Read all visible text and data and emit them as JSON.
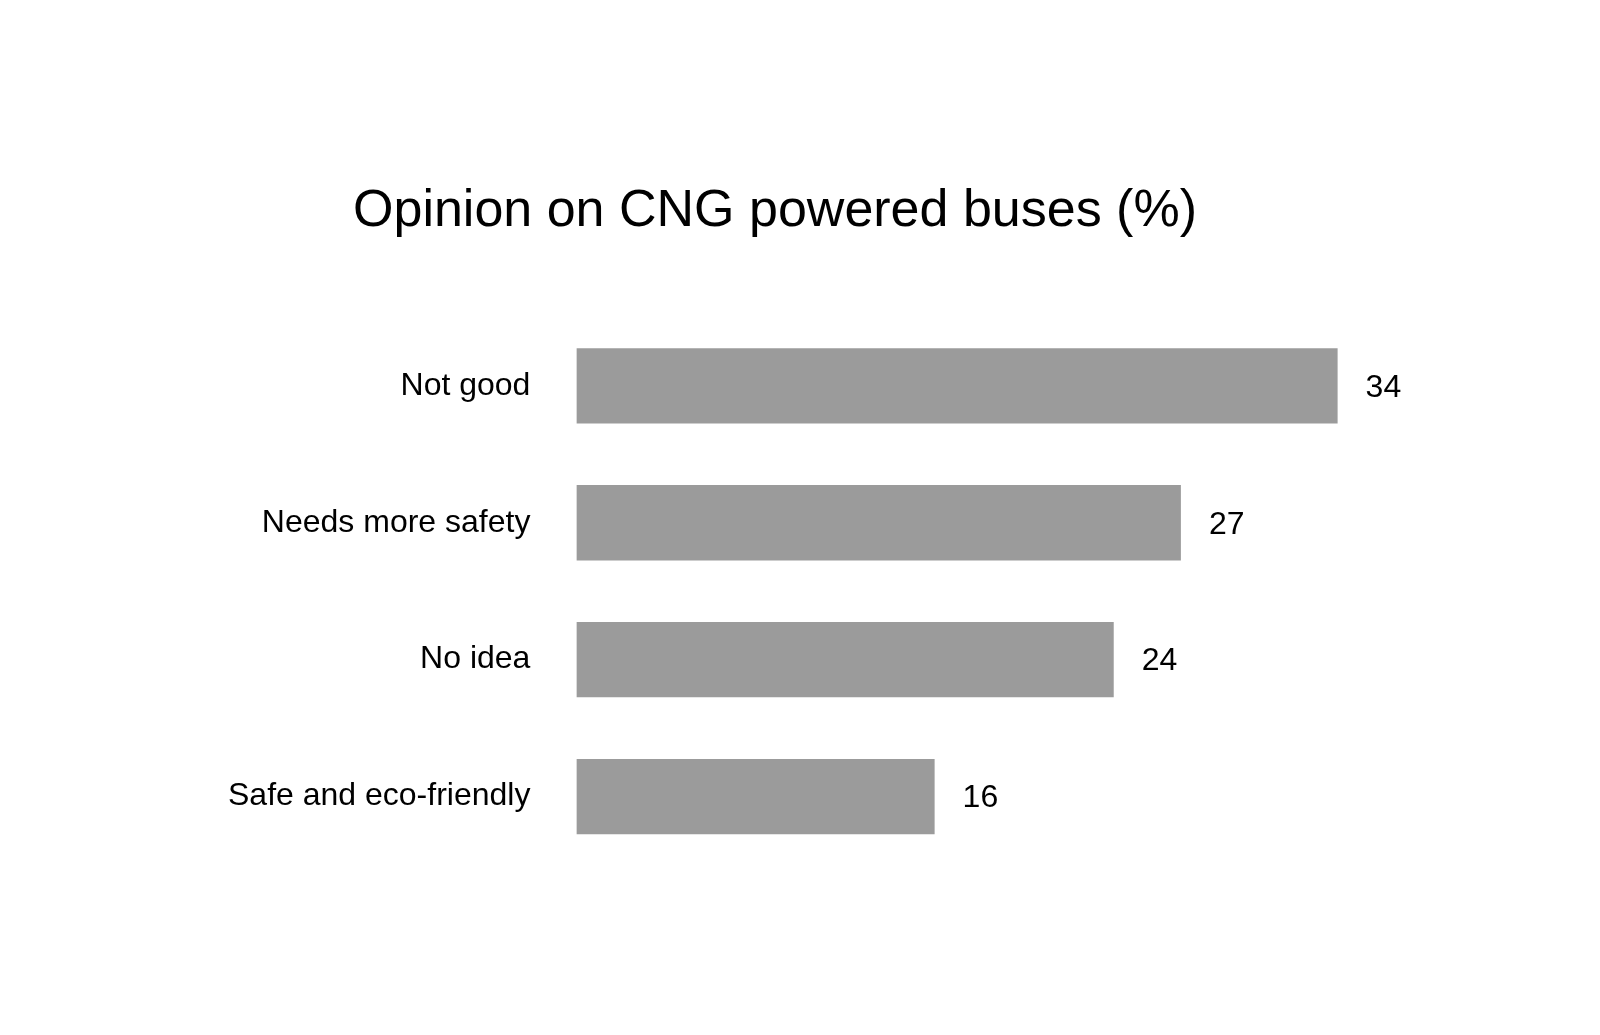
{
  "chart_data": {
    "type": "bar",
    "title": "Opinion on CNG powered buses (%)",
    "orientation": "horizontal",
    "categories": [
      "Not good",
      "Needs more safety",
      "No idea",
      "Safe and eco-friendly"
    ],
    "values": [
      34,
      27,
      24,
      16
    ],
    "color": "#9b9b9b",
    "data_labels": true
  }
}
